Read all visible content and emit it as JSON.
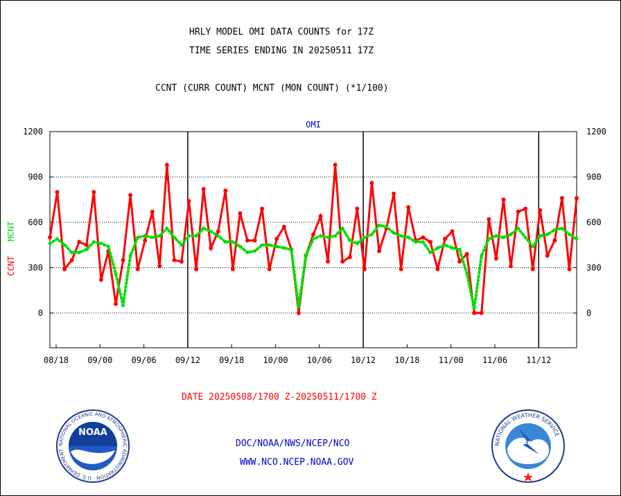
{
  "header": {
    "line1": "HRLY MODEL OMI DATA COUNTS for 17Z",
    "line2": "TIME SERIES ENDING IN 20250511 17Z",
    "line3": "CCNT (CURR COUNT) MCNT (MON COUNT) (*1/100)"
  },
  "footer": {
    "date_range": "DATE 20250508/1700 Z-20250511/1700 Z",
    "org": "DOC/NOAA/NWS/NCEP/NCO",
    "url": "WWW.NCO.NCEP.NOAA.GOV"
  },
  "logos": {
    "noaa_text": "NOAA",
    "noaa_ring": "NATIONAL OCEANIC AND ATMOSPHERIC ADMINISTRATION · U.S. DEPARTMENT OF COMMERCE ·",
    "nws_ring": "NATIONAL WEATHER SERVICE"
  },
  "chart_data": {
    "type": "line",
    "title": "OMI",
    "ylabel_left": [
      "CCNT",
      "MCNT"
    ],
    "ylim": [
      -230,
      1200
    ],
    "yticks": [
      1200,
      900,
      600,
      300,
      0
    ],
    "xticks": [
      "08/18",
      "09/00",
      "09/06",
      "09/12",
      "09/18",
      "10/00",
      "10/06",
      "10/12",
      "10/18",
      "11/00",
      "11/06",
      "11/12"
    ],
    "x_range_hours": [
      0,
      72
    ],
    "day_boundaries": [
      "09/12",
      "10/12",
      "11/12"
    ],
    "grid": true,
    "colors": {
      "ccnt": "#ff0000",
      "mcnt": "#00dd00",
      "axis_text": "#000000",
      "title": "#0000cc"
    },
    "series": [
      {
        "name": "CCNT",
        "style": "solid-dots",
        "values": [
          500,
          800,
          290,
          350,
          470,
          450,
          800,
          220,
          410,
          60,
          350,
          780,
          290,
          480,
          670,
          310,
          980,
          350,
          340,
          740,
          290,
          820,
          430,
          540,
          810,
          290,
          660,
          480,
          480,
          690,
          290,
          490,
          570,
          420,
          0,
          380,
          520,
          640,
          340,
          980,
          340,
          370,
          690,
          290,
          860,
          410,
          560,
          790,
          290,
          700,
          480,
          500,
          470,
          290,
          490,
          540,
          340,
          390,
          0,
          0,
          620,
          360,
          750,
          310,
          670,
          690,
          290,
          680,
          380,
          480,
          760,
          290,
          760
        ]
      },
      {
        "name": "MCNT",
        "style": "dotted",
        "values": [
          460,
          490,
          450,
          400,
          400,
          420,
          470,
          460,
          440,
          260,
          50,
          380,
          500,
          510,
          500,
          510,
          560,
          500,
          450,
          510,
          510,
          560,
          540,
          510,
          470,
          470,
          440,
          400,
          410,
          450,
          450,
          440,
          430,
          420,
          40,
          380,
          490,
          510,
          500,
          510,
          560,
          480,
          460,
          500,
          520,
          580,
          570,
          530,
          510,
          500,
          470,
          470,
          400,
          430,
          450,
          430,
          420,
          260,
          30,
          380,
          490,
          510,
          500,
          520,
          560,
          500,
          440,
          510,
          520,
          550,
          560,
          520,
          490
        ]
      }
    ]
  }
}
